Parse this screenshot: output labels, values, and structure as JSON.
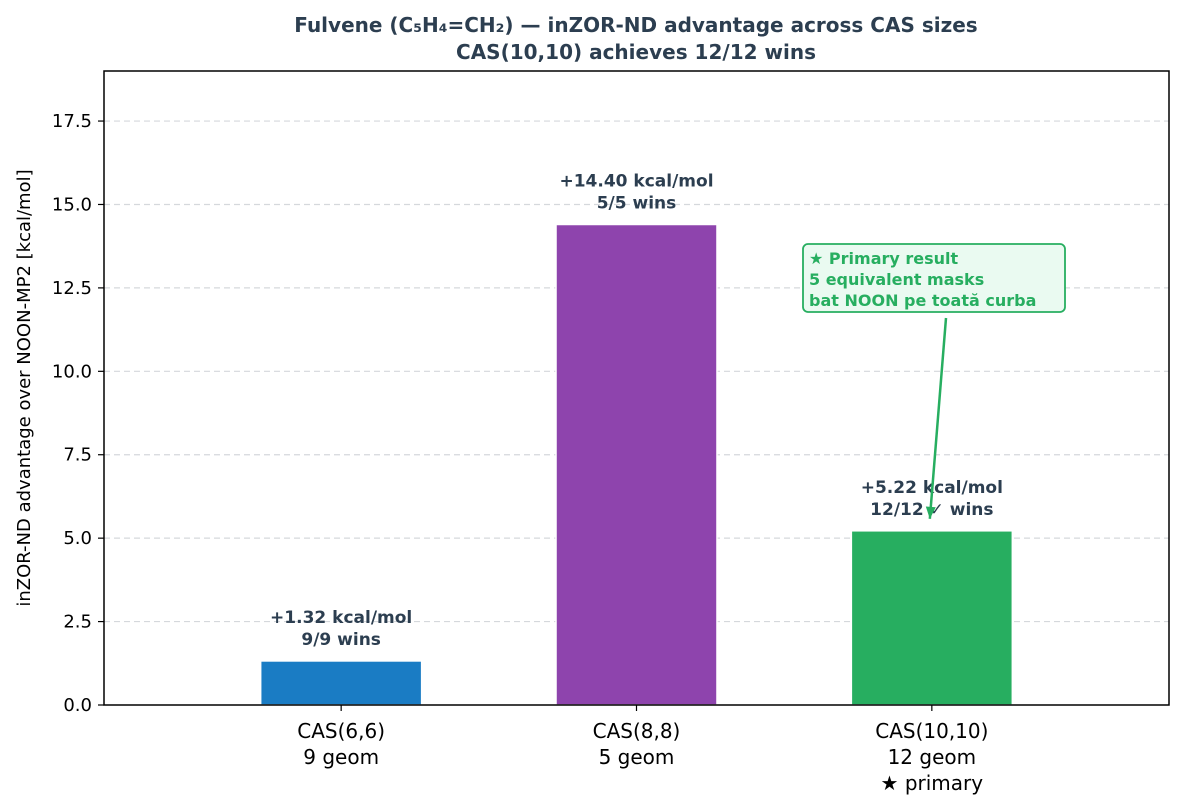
{
  "chart_data": {
    "type": "bar",
    "title": "Fulvene (C₅H₄=CH₂) — inZOR-ND advantage across CAS sizes",
    "subtitle": "CAS(10,10) achieves 12/12 wins",
    "xlabel": "",
    "ylabel": "inZOR-ND advantage over NOON-MP2  [kcal/mol]",
    "ylim": [
      0,
      19
    ],
    "yticks": [
      0.0,
      2.5,
      5.0,
      7.5,
      10.0,
      12.5,
      15.0,
      17.5
    ],
    "ytick_labels": [
      "0.0",
      "2.5",
      "5.0",
      "7.5",
      "10.0",
      "12.5",
      "15.0",
      "17.5"
    ],
    "grid": "y, dashed",
    "categories": [
      [
        "CAS(6,6)",
        "9 geom"
      ],
      [
        "CAS(8,8)",
        "5 geom"
      ],
      [
        "CAS(10,10)",
        "12 geom",
        "★ primary"
      ]
    ],
    "values": [
      1.32,
      14.4,
      5.22
    ],
    "bar_colors": [
      "#1a7cc4",
      "#8e44ad",
      "#27ae60"
    ],
    "data_labels": [
      [
        "+1.32 kcal/mol",
        "9/9 wins"
      ],
      [
        "+14.40 kcal/mol",
        "5/5 wins"
      ],
      [
        "+5.22 kcal/mol",
        "12/12 ✓ wins"
      ]
    ],
    "annotation": {
      "lines": [
        "★ Primary result",
        "5 equivalent masks",
        "bat NOON pe toată curba"
      ],
      "target_category_index": 2,
      "color": "#27ae60",
      "background": "#eafaf1"
    }
  }
}
